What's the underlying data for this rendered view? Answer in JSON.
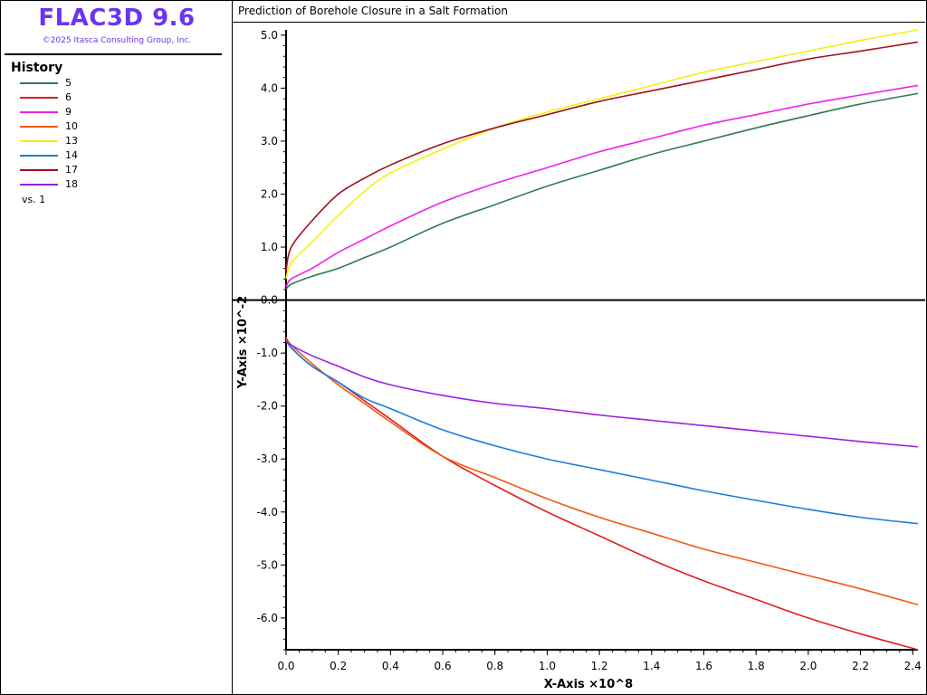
{
  "app": {
    "title": "FLAC3D 9.6",
    "copyright": "©2025 Itasca Consulting Group, Inc."
  },
  "legend": {
    "header": "History",
    "items": [
      {
        "label": "5",
        "color": "#2e7d4f"
      },
      {
        "label": "6",
        "color": "#e0201b"
      },
      {
        "label": "9",
        "color": "#f020f0"
      },
      {
        "label": "10",
        "color": "#f05a10"
      },
      {
        "label": "13",
        "color": "#f5f010"
      },
      {
        "label": "14",
        "color": "#1a7de0"
      },
      {
        "label": "17",
        "color": "#a0101e"
      },
      {
        "label": "18",
        "color": "#9a20e6"
      }
    ],
    "vs_label": "vs. 1"
  },
  "chart_data": {
    "type": "line",
    "title": "Prediction of Borehole Closure in a Salt Formation",
    "xlabel": "X-Axis ×10^8",
    "ylabel": "Y-Axis ×10^-2",
    "xlim": [
      0,
      2.42
    ],
    "ylim": [
      -6.6,
      5.1
    ],
    "xticks": [
      "0.0",
      "0.2",
      "0.4",
      "0.6",
      "0.8",
      "1.0",
      "1.2",
      "1.4",
      "1.6",
      "1.8",
      "2.0",
      "2.2",
      "2.4"
    ],
    "yticks": [
      "5.0",
      "4.0",
      "3.0",
      "2.0",
      "1.0",
      "0.0",
      "-1.0",
      "-2.0",
      "-3.0",
      "-4.0",
      "-5.0",
      "-6.0"
    ],
    "series": [
      {
        "name": "5",
        "color": "#2e7d4f",
        "x": [
          0,
          0.02,
          0.1,
          0.2,
          0.3,
          0.4,
          0.6,
          0.8,
          1.0,
          1.2,
          1.4,
          1.6,
          1.8,
          2.0,
          2.2,
          2.42
        ],
        "y": [
          0.2,
          0.3,
          0.45,
          0.6,
          0.8,
          1.0,
          1.45,
          1.8,
          2.15,
          2.45,
          2.75,
          3.0,
          3.25,
          3.48,
          3.7,
          3.9
        ]
      },
      {
        "name": "6",
        "color": "#e0201b",
        "x": [
          0,
          0.02,
          0.1,
          0.2,
          0.3,
          0.4,
          0.6,
          0.8,
          1.0,
          1.2,
          1.4,
          1.6,
          1.8,
          2.0,
          2.2,
          2.42
        ],
        "y": [
          -0.75,
          -0.9,
          -1.25,
          -1.55,
          -1.9,
          -2.25,
          -2.95,
          -3.5,
          -4.0,
          -4.45,
          -4.9,
          -5.3,
          -5.65,
          -6.0,
          -6.3,
          -6.6
        ]
      },
      {
        "name": "9",
        "color": "#f020f0",
        "x": [
          0,
          0.02,
          0.1,
          0.2,
          0.3,
          0.4,
          0.6,
          0.8,
          1.0,
          1.2,
          1.4,
          1.6,
          1.8,
          2.0,
          2.2,
          2.42
        ],
        "y": [
          0.25,
          0.4,
          0.6,
          0.9,
          1.15,
          1.4,
          1.85,
          2.2,
          2.5,
          2.8,
          3.05,
          3.3,
          3.5,
          3.7,
          3.87,
          4.05
        ]
      },
      {
        "name": "10",
        "color": "#f05a10",
        "x": [
          0,
          0.02,
          0.1,
          0.2,
          0.3,
          0.4,
          0.6,
          0.8,
          1.0,
          1.2,
          1.4,
          1.6,
          1.8,
          2.0,
          2.2,
          2.42
        ],
        "y": [
          -0.7,
          -0.85,
          -1.2,
          -1.6,
          -1.95,
          -2.3,
          -2.95,
          -3.35,
          -3.75,
          -4.1,
          -4.4,
          -4.7,
          -4.95,
          -5.2,
          -5.45,
          -5.75
        ]
      },
      {
        "name": "13",
        "color": "#f5f010",
        "x": [
          0,
          0.02,
          0.1,
          0.2,
          0.3,
          0.4,
          0.6,
          0.8,
          1.0,
          1.2,
          1.4,
          1.6,
          1.8,
          2.0,
          2.2,
          2.42
        ],
        "y": [
          0.4,
          0.7,
          1.1,
          1.6,
          2.05,
          2.4,
          2.85,
          3.25,
          3.55,
          3.8,
          4.05,
          4.3,
          4.5,
          4.7,
          4.9,
          5.1
        ]
      },
      {
        "name": "14",
        "color": "#1a7de0",
        "x": [
          0,
          0.02,
          0.1,
          0.2,
          0.3,
          0.4,
          0.6,
          0.8,
          1.0,
          1.2,
          1.4,
          1.6,
          1.8,
          2.0,
          2.2,
          2.42
        ],
        "y": [
          -0.75,
          -0.9,
          -1.25,
          -1.55,
          -1.85,
          -2.05,
          -2.45,
          -2.75,
          -3.0,
          -3.2,
          -3.4,
          -3.6,
          -3.78,
          -3.95,
          -4.1,
          -4.22
        ]
      },
      {
        "name": "17",
        "color": "#a0101e",
        "x": [
          0,
          0.02,
          0.1,
          0.2,
          0.3,
          0.4,
          0.6,
          0.8,
          1.0,
          1.2,
          1.4,
          1.6,
          1.8,
          2.0,
          2.2,
          2.42
        ],
        "y": [
          0.55,
          1.0,
          1.5,
          2.0,
          2.3,
          2.55,
          2.95,
          3.25,
          3.5,
          3.75,
          3.95,
          4.15,
          4.35,
          4.55,
          4.7,
          4.87
        ]
      },
      {
        "name": "18",
        "color": "#9a20e6",
        "x": [
          0,
          0.02,
          0.1,
          0.2,
          0.3,
          0.4,
          0.6,
          0.8,
          1.0,
          1.2,
          1.4,
          1.6,
          1.8,
          2.0,
          2.2,
          2.42
        ],
        "y": [
          -0.75,
          -0.85,
          -1.05,
          -1.25,
          -1.45,
          -1.6,
          -1.8,
          -1.95,
          -2.05,
          -2.17,
          -2.27,
          -2.37,
          -2.47,
          -2.57,
          -2.67,
          -2.77
        ]
      }
    ]
  }
}
